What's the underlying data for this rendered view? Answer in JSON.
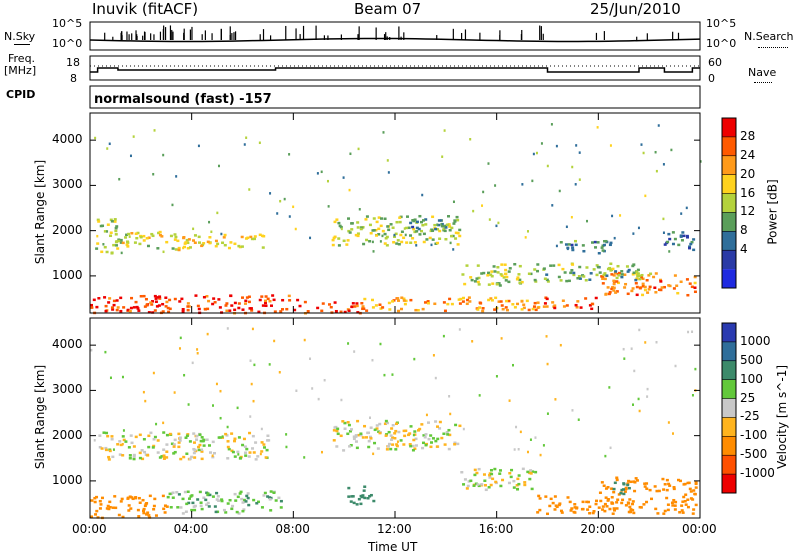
{
  "header": {
    "station": "Inuvik (fitACF)",
    "beam": "Beam 07",
    "date": "25/Jun/2010"
  },
  "top_panels": {
    "nsky_label": "N.Sky",
    "nsky_ticks": [
      "10^5",
      "10^0"
    ],
    "nsearch_label": "N.Search",
    "nsearch_ticks": [
      "10^5",
      "10^0"
    ],
    "freq_label_1": "Freq.",
    "freq_label_2": "[MHz]",
    "freq_ticks": [
      "18",
      "8"
    ],
    "nave_label": "Nave",
    "nave_ticks": [
      "60",
      "0"
    ],
    "cpid_label": "CPID",
    "cpid_value": "normalsound (fast) -157"
  },
  "chart_data": [
    {
      "type": "heatmap",
      "title": "",
      "xlabel": "Time UT",
      "ylabel": "Slant Range [km]",
      "x_ticks": [
        "00:00",
        "04:00",
        "08:00",
        "12:00",
        "16:00",
        "20:00",
        "00:00"
      ],
      "y_ticks": [
        "1000",
        "2000",
        "3000",
        "4000"
      ],
      "ylim": [
        180,
        4600
      ],
      "colorbar": {
        "label": "Power [dB]",
        "ticks": [
          "28",
          "24",
          "20",
          "16",
          "12",
          "8",
          "4"
        ],
        "colors": [
          "#ee0000",
          "#ff5a00",
          "#ff9a1a",
          "#ffd21e",
          "#b4d23c",
          "#5a9e5a",
          "#2f6e9a",
          "#2a3aa6",
          "#1f2ae0"
        ]
      },
      "echo_regions": [
        {
          "t0": 0.0,
          "t1": 8.6,
          "r0": 200,
          "r1": 600,
          "level": 28
        },
        {
          "t0": 8.6,
          "t1": 10.6,
          "r0": 200,
          "r1": 450,
          "level": 28
        },
        {
          "t0": 10.6,
          "t1": 17.8,
          "r0": 250,
          "r1": 550,
          "level": 22
        },
        {
          "t0": 17.8,
          "t1": 20.0,
          "r0": 300,
          "r1": 550,
          "level": 26
        },
        {
          "t0": 20.0,
          "t1": 23.8,
          "r0": 600,
          "r1": 1100,
          "level": 24
        },
        {
          "t0": 0.2,
          "t1": 1.2,
          "r0": 1500,
          "r1": 2300,
          "level": 14
        },
        {
          "t0": 1.2,
          "t1": 3.6,
          "r0": 1600,
          "r1": 2000,
          "level": 16
        },
        {
          "t0": 3.6,
          "t1": 6.9,
          "r0": 1600,
          "r1": 1950,
          "level": 18
        },
        {
          "t0": 9.5,
          "t1": 14.5,
          "r0": 1700,
          "r1": 2350,
          "level": 14
        },
        {
          "t0": 14.5,
          "t1": 17.0,
          "r0": 800,
          "r1": 1300,
          "level": 14
        },
        {
          "t0": 17.2,
          "t1": 22.0,
          "r0": 900,
          "r1": 1300,
          "level": 12
        },
        {
          "t0": 12.5,
          "t1": 14.0,
          "r0": 2000,
          "r1": 2350,
          "level": 8
        },
        {
          "t0": 18.3,
          "t1": 20.5,
          "r0": 1500,
          "r1": 1800,
          "level": 8
        },
        {
          "t0": 22.5,
          "t1": 23.9,
          "r0": 1600,
          "r1": 2000,
          "level": 6
        }
      ]
    },
    {
      "type": "heatmap",
      "title": "",
      "xlabel": "Time UT",
      "ylabel": "Slant Range [km]",
      "x_ticks": [
        "00:00",
        "04:00",
        "08:00",
        "12:00",
        "16:00",
        "20:00",
        "00:00"
      ],
      "y_ticks": [
        "1000",
        "2000",
        "3000",
        "4000"
      ],
      "ylim": [
        180,
        4600
      ],
      "colorbar": {
        "label": "Velocity [m s^-1]",
        "ticks": [
          "1000",
          "500",
          "100",
          "25",
          "-25",
          "-100",
          "-500",
          "-1000"
        ],
        "colors": [
          "#2a3ab0",
          "#2f6e9a",
          "#3c8a6a",
          "#62c83a",
          "#c8c8c8",
          "#ffb41e",
          "#ff8c00",
          "#ff5000",
          "#ee0000"
        ]
      },
      "echo_regions": [
        {
          "t0": 0.0,
          "t1": 3.0,
          "r0": 200,
          "r1": 700,
          "velocity": -300
        },
        {
          "t0": 3.0,
          "t1": 7.5,
          "r0": 300,
          "r1": 800,
          "velocity": 60
        },
        {
          "t0": 0.3,
          "t1": 7.0,
          "r0": 1500,
          "r1": 2100,
          "velocity": 0
        },
        {
          "t0": 9.5,
          "t1": 14.5,
          "r0": 1700,
          "r1": 2350,
          "velocity": 0
        },
        {
          "t0": 14.5,
          "t1": 17.5,
          "r0": 800,
          "r1": 1300,
          "velocity": 0
        },
        {
          "t0": 17.5,
          "t1": 20.0,
          "r0": 300,
          "r1": 700,
          "velocity": -200
        },
        {
          "t0": 20.0,
          "t1": 23.8,
          "r0": 300,
          "r1": 1100,
          "velocity": -350
        },
        {
          "t0": 20.5,
          "t1": 21.3,
          "r0": 700,
          "r1": 1000,
          "velocity": 200
        },
        {
          "t0": 10.0,
          "t1": 11.2,
          "r0": 500,
          "r1": 900,
          "velocity": 200
        }
      ]
    }
  ]
}
